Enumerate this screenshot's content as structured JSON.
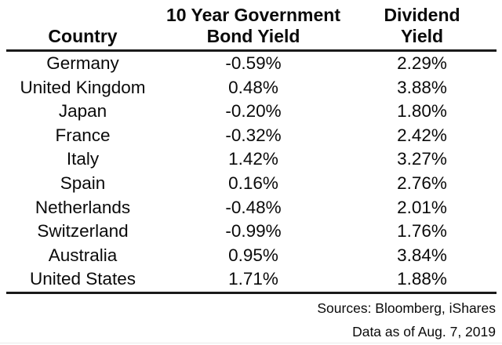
{
  "table": {
    "columns": [
      {
        "lines": [
          "Country"
        ]
      },
      {
        "lines": [
          "10 Year Government",
          "Bond Yield"
        ]
      },
      {
        "lines": [
          "Dividend",
          "Yield"
        ]
      }
    ],
    "rows": [
      {
        "country": "Germany",
        "bond_yield": "-0.59%",
        "dividend_yield": "2.29%"
      },
      {
        "country": "United Kingdom",
        "bond_yield": "0.48%",
        "dividend_yield": "3.88%"
      },
      {
        "country": "Japan",
        "bond_yield": "-0.20%",
        "dividend_yield": "1.80%"
      },
      {
        "country": "France",
        "bond_yield": "-0.32%",
        "dividend_yield": "2.42%"
      },
      {
        "country": "Italy",
        "bond_yield": "1.42%",
        "dividend_yield": "3.27%"
      },
      {
        "country": "Spain",
        "bond_yield": "0.16%",
        "dividend_yield": "2.76%"
      },
      {
        "country": "Netherlands",
        "bond_yield": "-0.48%",
        "dividend_yield": "2.01%"
      },
      {
        "country": "Switzerland",
        "bond_yield": "-0.99%",
        "dividend_yield": "1.76%"
      },
      {
        "country": "Australia",
        "bond_yield": "0.95%",
        "dividend_yield": "3.84%"
      },
      {
        "country": "United States",
        "bond_yield": "1.71%",
        "dividend_yield": "1.88%"
      }
    ]
  },
  "footer": {
    "sources": "Sources: Bloomberg, iShares",
    "as_of": "Data as of Aug. 7, 2019"
  },
  "colors": {
    "text": "#0a0a0a",
    "rule": "#1a1a1a",
    "background": "#ffffff"
  },
  "chart_data": {
    "type": "table",
    "title": "",
    "columns": [
      "Country",
      "10 Year Government Bond Yield (%)",
      "Dividend Yield (%)"
    ],
    "rows": [
      [
        "Germany",
        -0.59,
        2.29
      ],
      [
        "United Kingdom",
        0.48,
        3.88
      ],
      [
        "Japan",
        -0.2,
        1.8
      ],
      [
        "France",
        -0.32,
        2.42
      ],
      [
        "Italy",
        1.42,
        3.27
      ],
      [
        "Spain",
        0.16,
        2.76
      ],
      [
        "Netherlands",
        -0.48,
        2.01
      ],
      [
        "Switzerland",
        -0.99,
        1.76
      ],
      [
        "Australia",
        0.95,
        3.84
      ],
      [
        "United States",
        1.71,
        1.88
      ]
    ],
    "annotations": [
      "Sources: Bloomberg, iShares",
      "Data as of Aug. 7, 2019"
    ],
    "layout": {
      "header_rule": true,
      "bottom_rule": true,
      "notes_alignment": "right"
    }
  }
}
